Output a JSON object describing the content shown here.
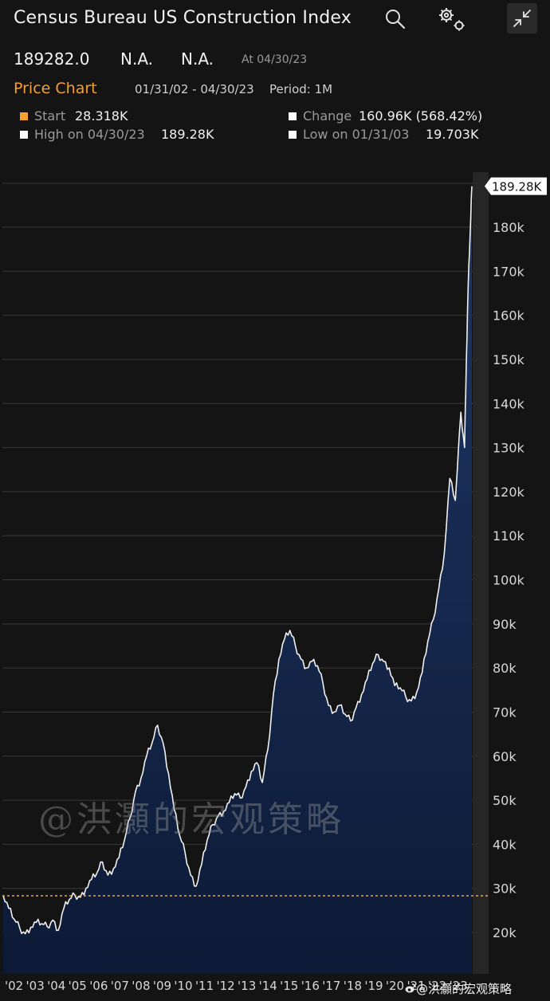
{
  "header": {
    "title": "Census Bureau US Construction Index",
    "last": "189282.0",
    "net_change": "N.A.",
    "pct_change": "N.A.",
    "as_of": "At 04/30/23",
    "chart_label": "Price Chart",
    "date_range": "01/31/02 - 04/30/23",
    "period": "Period: 1M",
    "icons": [
      "search-icon",
      "settings-gear-icon",
      "collapse-icon"
    ]
  },
  "stats": {
    "start_label": "Start",
    "start_value": "28.318K",
    "change_label": "Change",
    "change_value": "160.96K (568.42%)",
    "high_label": "High on 04/30/23",
    "high_value": "189.28K",
    "low_label": "Low on 01/31/03",
    "low_value": "19.703K"
  },
  "colors": {
    "background": "#141414",
    "accent_orange": "#f5a030",
    "line": "#f0f0f0",
    "area_top": "#1e3766",
    "area_bottom": "#0d1a36",
    "grid": "#3a3a3a"
  },
  "chart_data": {
    "type": "area",
    "ylim": [
      10000,
      190000
    ],
    "y_ticks": [
      20000,
      30000,
      40000,
      50000,
      60000,
      70000,
      80000,
      90000,
      100000,
      110000,
      120000,
      130000,
      140000,
      150000,
      160000,
      170000,
      180000
    ],
    "y_tick_labels": [
      "20k",
      "30k",
      "40k",
      "50k",
      "60k",
      "70k",
      "80k",
      "90k",
      "100k",
      "110k",
      "120k",
      "130k",
      "140k",
      "150k",
      "160k",
      "170k",
      "180k"
    ],
    "x_tick_labels": [
      "'02",
      "'03",
      "'04",
      "'05",
      "'06",
      "'07",
      "'08",
      "'09",
      "'10",
      "'11",
      "'12",
      "'13",
      "'14",
      "'15",
      "'16",
      "'17",
      "'18",
      "'19",
      "'20",
      "'21",
      "'22",
      "'23"
    ],
    "reference_line": {
      "value": 28318,
      "color": "#f5a030",
      "style": "dashed"
    },
    "last_value_label": "189.28K",
    "grid": true,
    "points": [
      [
        "2002-01",
        28318
      ],
      [
        "2002-04",
        25500
      ],
      [
        "2002-07",
        23000
      ],
      [
        "2002-10",
        21000
      ],
      [
        "2003-01",
        19703
      ],
      [
        "2003-04",
        21200
      ],
      [
        "2003-07",
        22300
      ],
      [
        "2003-10",
        22000
      ],
      [
        "2004-01",
        21300
      ],
      [
        "2004-04",
        22800
      ],
      [
        "2004-07",
        20500
      ],
      [
        "2004-10",
        25500
      ],
      [
        "2005-01",
        27500
      ],
      [
        "2005-04",
        28500
      ],
      [
        "2005-07",
        28000
      ],
      [
        "2005-10",
        30000
      ],
      [
        "2006-01",
        32000
      ],
      [
        "2006-04",
        33500
      ],
      [
        "2006-07",
        36000
      ],
      [
        "2006-10",
        33000
      ],
      [
        "2007-01",
        34500
      ],
      [
        "2007-04",
        37000
      ],
      [
        "2007-07",
        41000
      ],
      [
        "2007-10",
        46000
      ],
      [
        "2008-01",
        52000
      ],
      [
        "2008-04",
        55000
      ],
      [
        "2008-07",
        60000
      ],
      [
        "2008-10",
        63000
      ],
      [
        "2009-01",
        67000
      ],
      [
        "2009-04",
        63000
      ],
      [
        "2009-07",
        56000
      ],
      [
        "2009-10",
        48000
      ],
      [
        "2010-01",
        42000
      ],
      [
        "2010-04",
        38000
      ],
      [
        "2010-07",
        33000
      ],
      [
        "2010-10",
        30500
      ],
      [
        "2011-01",
        35500
      ],
      [
        "2011-04",
        41000
      ],
      [
        "2011-07",
        44500
      ],
      [
        "2011-10",
        46500
      ],
      [
        "2012-01",
        47500
      ],
      [
        "2012-04",
        49500
      ],
      [
        "2012-07",
        51500
      ],
      [
        "2012-10",
        50500
      ],
      [
        "2013-01",
        53000
      ],
      [
        "2013-04",
        56500
      ],
      [
        "2013-07",
        58500
      ],
      [
        "2013-10",
        54000
      ],
      [
        "2014-01",
        61500
      ],
      [
        "2014-04",
        74000
      ],
      [
        "2014-07",
        82000
      ],
      [
        "2014-10",
        86500
      ],
      [
        "2015-01",
        88500
      ],
      [
        "2015-04",
        85000
      ],
      [
        "2015-07",
        82000
      ],
      [
        "2015-10",
        80000
      ],
      [
        "2016-01",
        81500
      ],
      [
        "2016-04",
        80500
      ],
      [
        "2016-07",
        76500
      ],
      [
        "2016-10",
        71500
      ],
      [
        "2017-01",
        70000
      ],
      [
        "2017-04",
        71500
      ],
      [
        "2017-07",
        69500
      ],
      [
        "2017-10",
        68000
      ],
      [
        "2018-01",
        71000
      ],
      [
        "2018-04",
        74000
      ],
      [
        "2018-07",
        77500
      ],
      [
        "2018-10",
        81000
      ],
      [
        "2019-01",
        83000
      ],
      [
        "2019-04",
        81500
      ],
      [
        "2019-07",
        80000
      ],
      [
        "2019-10",
        76000
      ],
      [
        "2020-01",
        75500
      ],
      [
        "2020-04",
        73500
      ],
      [
        "2020-07",
        72500
      ],
      [
        "2020-10",
        74500
      ],
      [
        "2021-01",
        79000
      ],
      [
        "2021-04",
        86000
      ],
      [
        "2021-07",
        91000
      ],
      [
        "2021-10",
        98000
      ],
      [
        "2022-01",
        106000
      ],
      [
        "2022-04",
        123000
      ],
      [
        "2022-07",
        118000
      ],
      [
        "2022-10",
        138000
      ],
      [
        "2022-12",
        130000
      ],
      [
        "2023-01",
        150000
      ],
      [
        "2023-02",
        167000
      ],
      [
        "2023-03",
        178000
      ],
      [
        "2023-04",
        189282
      ]
    ]
  },
  "footer": {
    "watermark": "@洪灝的宏观策略",
    "weibo_handle": "@洪灝的宏观策略"
  }
}
